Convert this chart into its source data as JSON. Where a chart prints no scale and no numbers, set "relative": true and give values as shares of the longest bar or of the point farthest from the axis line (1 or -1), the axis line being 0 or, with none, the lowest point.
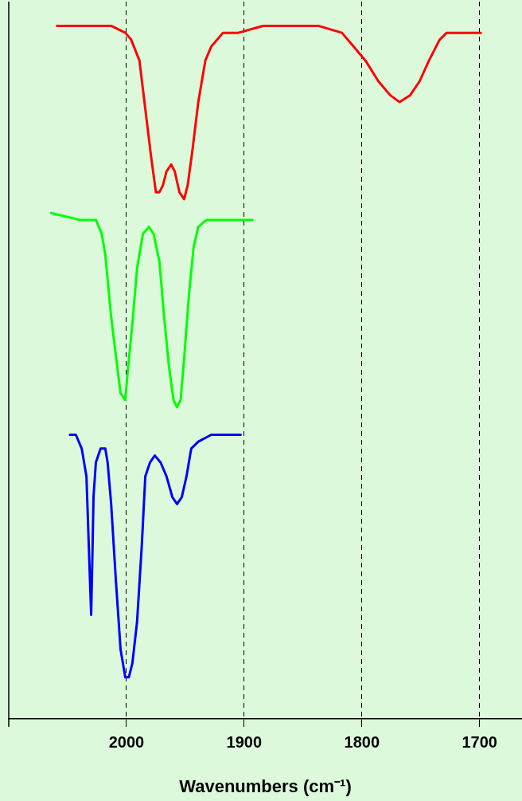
{
  "chart_data": {
    "type": "line",
    "relative": true,
    "xlabel": "Wavenumbers (cm⁻¹)",
    "xlim": [
      2100,
      1664
    ],
    "xticks": [
      2000,
      1900,
      1800,
      1700
    ],
    "grid": "x",
    "legend": false,
    "marker": "none",
    "line_style": "solid",
    "tick_labels": "x",
    "series": [
      {
        "color": "#ff0000",
        "x": [
          2059,
          2040,
          2013,
          2001,
          1996,
          1989,
          1984,
          1979,
          1975,
          1972,
          1969,
          1966,
          1962,
          1959,
          1955,
          1951,
          1948,
          1944,
          1939,
          1933,
          1928,
          1918,
          1905,
          1884,
          1864,
          1837,
          1817,
          1807,
          1797,
          1786,
          1776,
          1768,
          1759,
          1751,
          1743,
          1734,
          1728,
          1716,
          1699
        ],
        "values": [
          1.0,
          1.0,
          1.0,
          0.99,
          0.98,
          0.95,
          0.88,
          0.81,
          0.76,
          0.76,
          0.77,
          0.79,
          0.8,
          0.79,
          0.76,
          0.75,
          0.77,
          0.82,
          0.89,
          0.95,
          0.97,
          0.99,
          0.99,
          1.0,
          1.0,
          1.0,
          0.99,
          0.97,
          0.95,
          0.92,
          0.9,
          0.89,
          0.9,
          0.92,
          0.95,
          0.98,
          0.99,
          0.99,
          0.99
        ]
      },
      {
        "color": "#00ff00",
        "x": [
          2064,
          2040,
          2026,
          2021,
          2018,
          2013,
          2008,
          2005,
          2001,
          1999,
          1995,
          1991,
          1986,
          1981,
          1977,
          1972,
          1968,
          1964,
          1960,
          1957,
          1954,
          1951,
          1947,
          1943,
          1939,
          1932,
          1918,
          1893
        ],
        "values": [
          0.73,
          0.72,
          0.72,
          0.7,
          0.67,
          0.58,
          0.51,
          0.47,
          0.46,
          0.5,
          0.57,
          0.65,
          0.7,
          0.71,
          0.7,
          0.66,
          0.58,
          0.51,
          0.46,
          0.45,
          0.46,
          0.52,
          0.61,
          0.68,
          0.71,
          0.72,
          0.72,
          0.72
        ]
      },
      {
        "color": "#0000ff",
        "x": [
          2048,
          2043,
          2038,
          2034,
          2032,
          2030,
          2029,
          2028,
          2026,
          2022,
          2018,
          2016,
          2013,
          2009,
          2005,
          2001,
          1998,
          1995,
          1991,
          1987,
          1984,
          1980,
          1976,
          1971,
          1966,
          1961,
          1957,
          1953,
          1949,
          1945,
          1939,
          1928,
          1903
        ],
        "values": [
          0.41,
          0.41,
          0.39,
          0.35,
          0.25,
          0.15,
          0.23,
          0.32,
          0.37,
          0.39,
          0.39,
          0.37,
          0.31,
          0.2,
          0.1,
          0.06,
          0.06,
          0.08,
          0.14,
          0.25,
          0.35,
          0.37,
          0.38,
          0.37,
          0.35,
          0.32,
          0.31,
          0.32,
          0.35,
          0.39,
          0.4,
          0.41,
          0.41
        ]
      }
    ]
  }
}
